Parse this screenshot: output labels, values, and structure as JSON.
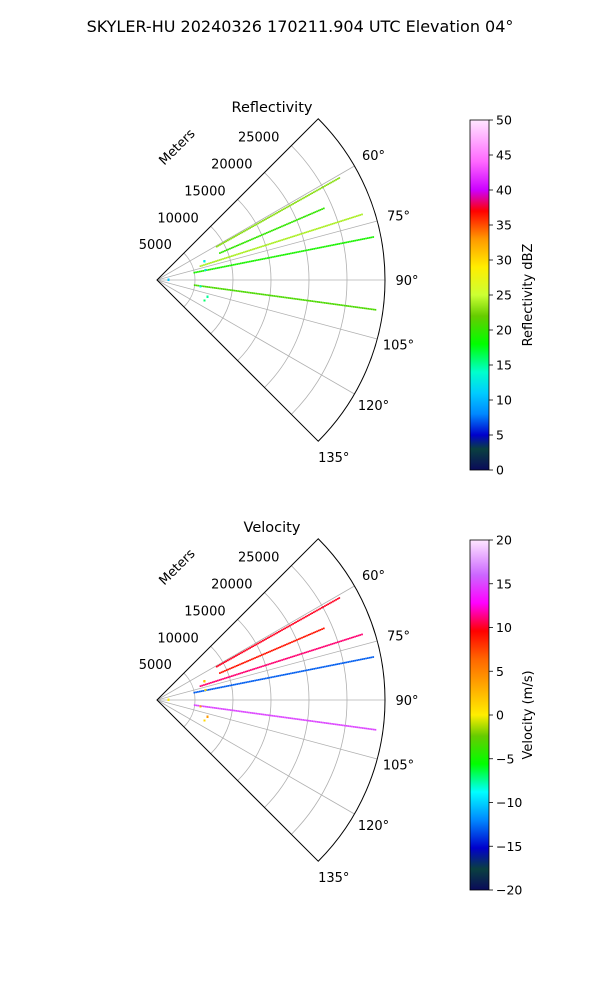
{
  "figure_title": "SKYLER-HU  20240326  170211.904 UTC Elevation 04°",
  "colors": {
    "grid": "#b0b0b0",
    "frame": "#000000"
  },
  "chart_data": [
    {
      "type": "polar-sector-scatter",
      "title": "Reflectivity",
      "radial_label": "Meters",
      "radial_ticks": [
        "5000",
        "10000",
        "15000",
        "20000",
        "25000"
      ],
      "radial_tick_values": [
        5000,
        10000,
        15000,
        20000,
        25000
      ],
      "r_max": 30000,
      "theta_range_deg": [
        45,
        135
      ],
      "theta_tick_values": [
        60,
        75,
        90,
        105,
        120,
        135
      ],
      "theta_ticks": [
        "60°",
        "75°",
        "90°",
        "105°",
        "120°",
        "135°"
      ],
      "colorbar": {
        "label": "Reflectivity dBZ",
        "min": 0,
        "max": 50,
        "tick_values": [
          0,
          5,
          10,
          15,
          20,
          25,
          30,
          35,
          40,
          45,
          50
        ],
        "ticks": [
          "0",
          "5",
          "10",
          "15",
          "20",
          "25",
          "30",
          "35",
          "40",
          "45",
          "50"
        ]
      },
      "beams": [
        {
          "azimuth_deg": 61,
          "r_range": [
            9000,
            27500
          ],
          "value": 23
        },
        {
          "azimuth_deg": 67,
          "r_range": [
            9000,
            24000
          ],
          "value": 20
        },
        {
          "azimuth_deg": 72.5,
          "r_range": [
            6000,
            28500
          ],
          "value": 24
        },
        {
          "azimuth_deg": 79,
          "r_range": [
            5000,
            29000
          ],
          "value": 19
        },
        {
          "azimuth_deg": 98,
          "r_range": [
            5000,
            29000
          ],
          "value": 21
        }
      ],
      "clusters": [
        {
          "azimuth_deg": 70,
          "r": 7200,
          "value": 13
        },
        {
          "azimuth_deg": 80,
          "r": 7000,
          "value": 12
        },
        {
          "azimuth_deg": 90,
          "r": 2000,
          "value": 11
        },
        {
          "azimuth_deg": 100,
          "r": 6300,
          "value": 14
        },
        {
          "azimuth_deg": 110,
          "r": 7500,
          "value": 15
        },
        {
          "azimuth_deg": 115,
          "r": 7300,
          "value": 16
        }
      ]
    },
    {
      "type": "polar-sector-scatter",
      "title": "Velocity",
      "radial_label": "Meters",
      "radial_ticks": [
        "5000",
        "10000",
        "15000",
        "20000",
        "25000"
      ],
      "radial_tick_values": [
        5000,
        10000,
        15000,
        20000,
        25000
      ],
      "r_max": 30000,
      "theta_range_deg": [
        45,
        135
      ],
      "theta_tick_values": [
        60,
        75,
        90,
        105,
        120,
        135
      ],
      "theta_ticks": [
        "60°",
        "75°",
        "90°",
        "105°",
        "120°",
        "135°"
      ],
      "colorbar": {
        "label": "Velocity (m/s)",
        "min": -20,
        "max": 20,
        "tick_values": [
          -20,
          -15,
          -10,
          -5,
          0,
          5,
          10,
          15,
          20
        ],
        "ticks": [
          "−20",
          "−15",
          "−10",
          "−5",
          "0",
          "5",
          "10",
          "15",
          "20"
        ]
      },
      "beams": [
        {
          "azimuth_deg": 61,
          "r_range": [
            9000,
            27500
          ],
          "value": 10
        },
        {
          "azimuth_deg": 67,
          "r_range": [
            9000,
            24000
          ],
          "value": 9
        },
        {
          "azimuth_deg": 72.5,
          "r_range": [
            6000,
            28500
          ],
          "value": 11
        },
        {
          "azimuth_deg": 79,
          "r_range": [
            5000,
            29000
          ],
          "value": -13
        },
        {
          "azimuth_deg": 98,
          "r_range": [
            5000,
            29000
          ],
          "value": 15
        }
      ],
      "clusters": [
        {
          "azimuth_deg": 70,
          "r": 7200,
          "value": 2
        },
        {
          "azimuth_deg": 80,
          "r": 7000,
          "value": 1
        },
        {
          "azimuth_deg": 90,
          "r": 2000,
          "value": 0
        },
        {
          "azimuth_deg": 100,
          "r": 6300,
          "value": 3
        },
        {
          "azimuth_deg": 110,
          "r": 7500,
          "value": 4
        },
        {
          "azimuth_deg": 115,
          "r": 7300,
          "value": 1
        }
      ]
    }
  ]
}
